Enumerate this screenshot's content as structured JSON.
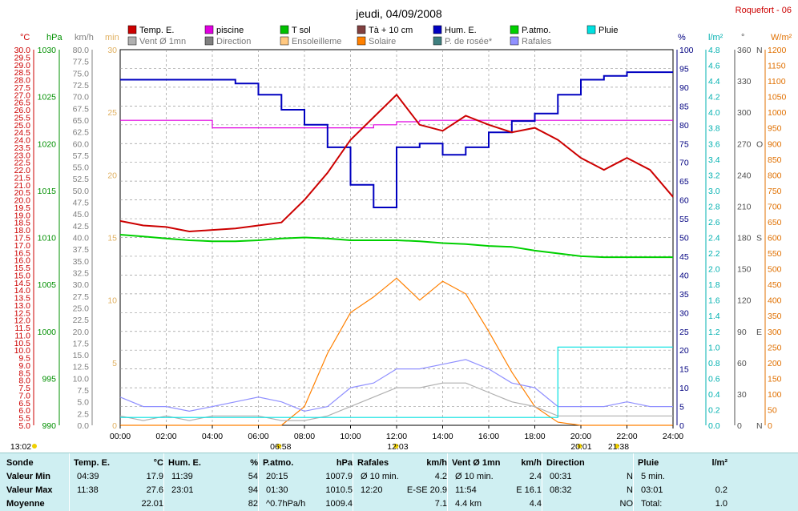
{
  "title": "jeudi, 04/09/2008",
  "location": "Roquefort - 06",
  "legend": [
    {
      "label": "Temp. E.",
      "color": "#cc0000"
    },
    {
      "label": "piscine",
      "color": "#e000e0"
    },
    {
      "label": "T sol",
      "color": "#00c000"
    },
    {
      "label": "Tà + 10 cm",
      "color": "#804040"
    },
    {
      "label": "Hum. E.",
      "color": "#0000c0"
    },
    {
      "label": "P.atmo.",
      "color": "#00d000"
    },
    {
      "label": "Pluie",
      "color": "#00e0e0"
    },
    {
      "label": "Vent Ø 1mn",
      "color": "#b0b0b0"
    },
    {
      "label": "Direction",
      "color": "#808080"
    },
    {
      "label": "Ensoleilleme",
      "color": "#ffc880"
    },
    {
      "label": "Solaire",
      "color": "#ff8000"
    },
    {
      "label": "P. de rosée*",
      "color": "#408080"
    },
    {
      "label": "Rafales",
      "color": "#9090ff"
    }
  ],
  "axis_units": {
    "temp": "°C",
    "press": "hPa",
    "wind": "km/h",
    "sun": "min",
    "hum": "%",
    "rain": "l/m²",
    "dir": "°",
    "solar": "W/m²"
  },
  "axis_ticks": {
    "temp": [
      "5.0",
      "5.5",
      "6.0",
      "6.5",
      "7.0",
      "7.5",
      "8.0",
      "8.5",
      "9.0",
      "9.5",
      "10.0",
      "10.5",
      "11.0",
      "11.5",
      "12.0",
      "12.5",
      "13.0",
      "13.5",
      "14.0",
      "14.5",
      "15.0",
      "15.5",
      "16.0",
      "16.5",
      "17.0",
      "17.5",
      "18.0",
      "18.5",
      "19.0",
      "19.5",
      "20.0",
      "20.5",
      "21.0",
      "21.5",
      "22.0",
      "22.5",
      "23.0",
      "23.5",
      "24.0",
      "24.5",
      "25.0",
      "25.5",
      "26.0",
      "26.5",
      "27.0",
      "27.5",
      "28.0",
      "28.5",
      "29.0",
      "29.5",
      "30.0"
    ],
    "press": [
      "990",
      "995",
      "1000",
      "1005",
      "1010",
      "1015",
      "1020",
      "1025",
      "1030"
    ],
    "wind": [
      "0.0",
      "2.5",
      "5.0",
      "7.5",
      "10.0",
      "12.5",
      "15.0",
      "17.5",
      "20.0",
      "22.5",
      "25.0",
      "27.5",
      "30.0",
      "32.5",
      "35.0",
      "37.5",
      "40.0",
      "42.5",
      "45.0",
      "47.5",
      "50.0",
      "52.5",
      "55.0",
      "57.5",
      "60.0",
      "62.5",
      "65.0",
      "67.5",
      "70.0",
      "72.5",
      "75.0",
      "77.5",
      "80.0"
    ],
    "sun": [
      "0",
      "5",
      "10",
      "15",
      "20",
      "25",
      "30"
    ],
    "hum": [
      "0",
      "5",
      "10",
      "15",
      "20",
      "25",
      "30",
      "35",
      "40",
      "45",
      "50",
      "55",
      "60",
      "65",
      "70",
      "75",
      "80",
      "85",
      "90",
      "95",
      "100"
    ],
    "rain": [
      "0.0",
      "0.2",
      "0.4",
      "0.6",
      "0.8",
      "1.0",
      "1.2",
      "1.4",
      "1.6",
      "1.8",
      "2.0",
      "2.2",
      "2.4",
      "2.6",
      "2.8",
      "3.0",
      "3.2",
      "3.4",
      "3.6",
      "3.8",
      "4.0",
      "4.2",
      "4.4",
      "4.6",
      "4.8"
    ],
    "dir": [
      "0",
      "30",
      "60",
      "90",
      "120",
      "150",
      "180",
      "210",
      "240",
      "270",
      "300",
      "330",
      "360"
    ],
    "dir_letters": [
      "N",
      "",
      "",
      "E",
      "",
      "",
      "S",
      "",
      "",
      "O",
      "",
      "",
      "N"
    ],
    "solar": [
      "0",
      "50",
      "100",
      "150",
      "200",
      "250",
      "300",
      "350",
      "400",
      "450",
      "500",
      "550",
      "600",
      "650",
      "700",
      "750",
      "800",
      "850",
      "900",
      "950",
      "1000",
      "1050",
      "1100",
      "1150",
      "1200"
    ]
  },
  "time_ticks": [
    "00:00",
    "02:00",
    "04:00",
    "06:00",
    "08:00",
    "10:00",
    "12:00",
    "14:00",
    "16:00",
    "18:00",
    "20:00",
    "22:00",
    "24:00"
  ],
  "sun_events": {
    "moonrise": "13:02",
    "sunrise": "06:58",
    "noon": "12:03",
    "moonset": "20:01",
    "sunset": "21:38"
  },
  "chart_data": {
    "type": "line",
    "x": [
      0,
      1,
      2,
      3,
      4,
      5,
      6,
      7,
      8,
      9,
      10,
      11,
      12,
      13,
      14,
      15,
      16,
      17,
      18,
      19,
      20,
      21,
      22,
      23,
      24
    ],
    "xlabel": "",
    "series": [
      {
        "name": "Temp. E.",
        "unit": "°C",
        "values": [
          18.6,
          18.3,
          18.2,
          17.9,
          18.0,
          18.1,
          18.3,
          18.5,
          20.0,
          21.8,
          24.0,
          25.5,
          27.0,
          25.0,
          24.6,
          25.6,
          25.0,
          24.5,
          24.8,
          24.0,
          22.8,
          22.0,
          22.8,
          22.0,
          20.2
        ]
      },
      {
        "name": "Hum. E.",
        "unit": "%",
        "values": [
          92,
          92,
          92,
          92,
          92,
          91,
          88,
          84,
          80,
          74,
          64,
          58,
          74,
          75,
          72,
          74,
          78,
          81,
          83,
          88,
          92,
          93,
          94,
          94,
          94
        ]
      },
      {
        "name": "P.atmo.",
        "unit": "hPa",
        "values": [
          1010.3,
          1010.1,
          1009.9,
          1009.7,
          1009.6,
          1009.6,
          1009.7,
          1009.9,
          1010.0,
          1009.9,
          1009.7,
          1009.7,
          1009.7,
          1009.6,
          1009.4,
          1009.3,
          1009.1,
          1009.0,
          1008.6,
          1008.3,
          1008.0,
          1007.9,
          1007.9,
          1007.9,
          1007.9
        ]
      },
      {
        "name": "Solaire",
        "unit": "W/m²",
        "values": [
          0,
          0,
          0,
          0,
          0,
          0,
          0,
          0,
          60,
          230,
          360,
          410,
          470,
          400,
          460,
          420,
          300,
          170,
          60,
          10,
          0,
          0,
          0,
          0,
          0
        ]
      },
      {
        "name": "Rafales",
        "unit": "km/h",
        "values": [
          6,
          4,
          4,
          3,
          4,
          5,
          6,
          5,
          3,
          4,
          8,
          9,
          12,
          12,
          13,
          14,
          12,
          9,
          8,
          4,
          4,
          4,
          5,
          4,
          4
        ]
      },
      {
        "name": "Vent Ø 1mn",
        "unit": "km/h",
        "values": [
          2,
          1,
          2,
          1,
          2,
          2,
          2,
          1,
          1,
          2,
          4,
          6,
          8,
          8,
          9,
          9,
          7,
          5,
          4,
          2,
          2,
          2,
          2,
          2,
          2
        ]
      },
      {
        "name": "Pluie",
        "unit": "l/m²",
        "values": [
          0.1,
          0.1,
          0.1,
          0.1,
          0.1,
          0.1,
          0.1,
          0.1,
          0.1,
          0.1,
          0.1,
          0.1,
          0.1,
          0.1,
          0.1,
          0.1,
          0.1,
          0.1,
          0.1,
          1.0,
          1.0,
          1.0,
          1.0,
          1.0,
          1.0
        ]
      },
      {
        "name": "piscine",
        "unit": "°C",
        "values": [
          25.3,
          25.3,
          25.3,
          25.3,
          24.8,
          24.8,
          24.8,
          24.8,
          24.8,
          24.8,
          24.8,
          25.0,
          25.2,
          25.3,
          25.3,
          25.3,
          25.3,
          25.3,
          25.3,
          25.3,
          25.3,
          25.3,
          25.3,
          25.3,
          25.3
        ]
      }
    ]
  },
  "summary": {
    "row_labels": [
      "Sonde",
      "Valeur Min",
      "Valeur Max",
      "Moyenne"
    ],
    "columns": [
      {
        "head": "Temp. E.",
        "unit": "°C",
        "rows": [
          [
            "04:39",
            "17.9"
          ],
          [
            "11:38",
            "27.6"
          ],
          [
            "",
            "22.01"
          ]
        ]
      },
      {
        "head": "Hum. E.",
        "unit": "%",
        "rows": [
          [
            "11:39",
            "54"
          ],
          [
            "23:01",
            "94"
          ],
          [
            "",
            "82"
          ]
        ]
      },
      {
        "head": "P.atmo.",
        "unit": "hPa",
        "rows": [
          [
            "20:15",
            "1007.9"
          ],
          [
            "01:30",
            "1010.5"
          ],
          [
            "^0.7hPa/h",
            "1009.4"
          ]
        ]
      },
      {
        "head": "Rafales",
        "unit": "km/h",
        "rows": [
          [
            "Ø 10 min.",
            "4.2"
          ],
          [
            "12:20",
            "E-SE 20.9"
          ],
          [
            "",
            "7.1"
          ]
        ]
      },
      {
        "head": "Vent Ø 1mn",
        "unit": "km/h",
        "rows": [
          [
            "Ø 10 min.",
            "2.4"
          ],
          [
            "11:54",
            "E 16.1"
          ],
          [
            "4.4 km",
            "4.4"
          ]
        ]
      },
      {
        "head": "Direction",
        "unit": "",
        "rows": [
          [
            "00:31",
            "N"
          ],
          [
            "08:32",
            "N"
          ],
          [
            "",
            "NO"
          ]
        ]
      },
      {
        "head": "Pluie",
        "unit": "l/m²",
        "rows": [
          [
            "5 min.",
            ""
          ],
          [
            "03:01",
            "0.2"
          ],
          [
            "Total:",
            "1.0"
          ]
        ]
      }
    ]
  }
}
